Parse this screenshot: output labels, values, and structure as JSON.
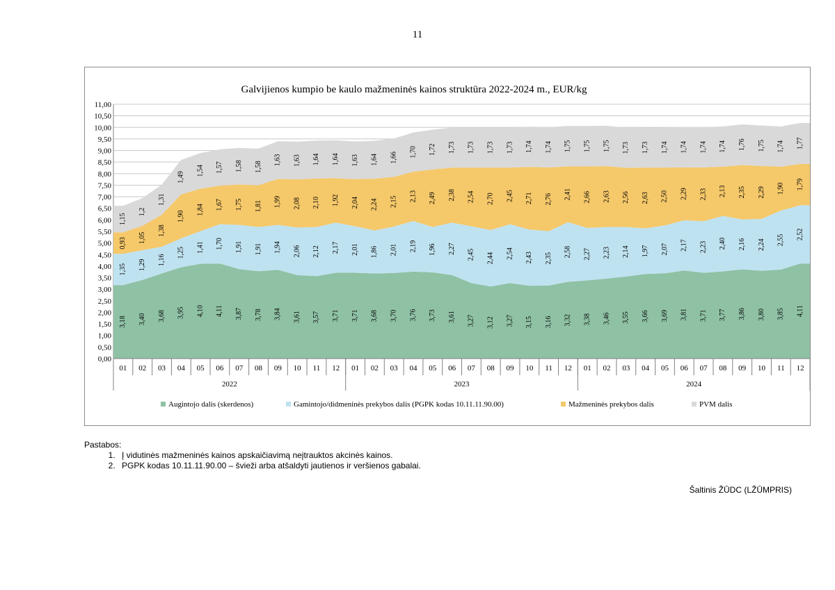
{
  "page_number": "11",
  "chart_data": {
    "type": "area",
    "stacked": true,
    "title": "Galvijienos kumpio be kaulo mažmeninės kainos struktūra 2022-2024 m., EUR/kg",
    "ylim": [
      0,
      11
    ],
    "yticks": [
      "0,00",
      "0,50",
      "1,00",
      "1,50",
      "2,00",
      "2,50",
      "3,00",
      "3,50",
      "4,00",
      "4,50",
      "5,00",
      "5,50",
      "6,00",
      "6,50",
      "7,00",
      "7,50",
      "8,00",
      "8,50",
      "9,00",
      "9,50",
      "10,00",
      "10,50",
      "11,00"
    ],
    "categories": [
      "01",
      "02",
      "03",
      "04",
      "05",
      "06",
      "07",
      "08",
      "09",
      "10",
      "11",
      "12",
      "01",
      "02",
      "03",
      "04",
      "05",
      "06",
      "07",
      "08",
      "09",
      "10",
      "11",
      "12",
      "01",
      "02",
      "03",
      "04",
      "05",
      "06",
      "07",
      "08",
      "09",
      "10",
      "11",
      "12"
    ],
    "years": [
      "2022",
      "2023",
      "2024"
    ],
    "grid": true,
    "legend_position": "bottom",
    "series": [
      {
        "name": "Augintojo dalis (skerdenos)",
        "color": "#8fc1a5",
        "values": [
          3.18,
          3.4,
          3.68,
          3.95,
          4.1,
          4.11,
          3.87,
          3.78,
          3.84,
          3.61,
          3.57,
          3.71,
          3.71,
          3.68,
          3.7,
          3.76,
          3.73,
          3.61,
          3.27,
          3.12,
          3.27,
          3.15,
          3.16,
          3.32,
          3.38,
          3.46,
          3.55,
          3.66,
          3.69,
          3.81,
          3.71,
          3.77,
          3.86,
          3.8,
          3.85,
          4.11
        ],
        "labels": [
          "3,18",
          "3,40",
          "3,68",
          "3,95",
          "4,10",
          "4,11",
          "3,87",
          "3,78",
          "3,84",
          "3,61",
          "3,57",
          "3,71",
          "3,71",
          "3,68",
          "3,70",
          "3,76",
          "3,73",
          "3,61",
          "3,27",
          "3,12",
          "3,27",
          "3,15",
          "3,16",
          "3,32",
          "3,38",
          "3,46",
          "3,55",
          "3,66",
          "3,69",
          "3,81",
          "3,71",
          "3,77",
          "3,86",
          "3,80",
          "3,85",
          "4,11"
        ]
      },
      {
        "name": "Gamintojo/didmeninės prekybos dalis (PGPK kodas 10.11.11.90.00)",
        "color": "#bfe2f0",
        "values": [
          1.35,
          1.29,
          1.16,
          1.25,
          1.41,
          1.7,
          1.91,
          1.91,
          1.94,
          2.06,
          2.12,
          2.17,
          2.01,
          1.86,
          2.01,
          2.19,
          1.96,
          2.27,
          2.45,
          2.44,
          2.54,
          2.43,
          2.35,
          2.58,
          2.27,
          2.23,
          2.14,
          1.97,
          2.07,
          2.17,
          2.23,
          2.4,
          2.16,
          2.24,
          2.55,
          2.52
        ],
        "labels": [
          "1,35",
          "1,29",
          "1,16",
          "1,25",
          "1,41",
          "1,70",
          "1,91",
          "1,91",
          "1,94",
          "2,06",
          "2,12",
          "2,17",
          "2,01",
          "1,86",
          "2,01",
          "2,19",
          "1,96",
          "2,27",
          "2,45",
          "2,44",
          "2,54",
          "2,43",
          "2,35",
          "2,58",
          "2,27",
          "2,23",
          "2,14",
          "1,97",
          "2,07",
          "2,17",
          "2,23",
          "2,40",
          "2,16",
          "2,24",
          "2,55",
          "2,52"
        ]
      },
      {
        "name": "Mažmeninės prekybos dalis",
        "color": "#f5c86a",
        "values": [
          0.93,
          1.05,
          1.38,
          1.9,
          1.84,
          1.67,
          1.75,
          1.81,
          1.99,
          2.08,
          2.1,
          1.92,
          2.04,
          2.24,
          2.15,
          2.13,
          2.49,
          2.38,
          2.54,
          2.7,
          2.45,
          2.71,
          2.76,
          2.41,
          2.66,
          2.63,
          2.56,
          2.63,
          2.5,
          2.29,
          2.33,
          2.13,
          2.35,
          2.29,
          1.9,
          1.79
        ],
        "labels": [
          "0,93",
          "1,05",
          "1,38",
          "1,90",
          "1,84",
          "1,67",
          "1,75",
          "1,81",
          "1,99",
          "2,08",
          "2,10",
          "1,92",
          "2,04",
          "2,24",
          "2,15",
          "2,13",
          "2,49",
          "2,38",
          "2,54",
          "2,70",
          "2,45",
          "2,71",
          "2,76",
          "2,41",
          "2,66",
          "2,63",
          "2,56",
          "2,63",
          "2,50",
          "2,29",
          "2,33",
          "2,13",
          "2,35",
          "2,29",
          "1,90",
          "1,79"
        ]
      },
      {
        "name": "PVM dalis",
        "color": "#d9d9d9",
        "values": [
          1.15,
          1.2,
          1.31,
          1.49,
          1.54,
          1.57,
          1.58,
          1.58,
          1.63,
          1.63,
          1.64,
          1.64,
          1.63,
          1.64,
          1.66,
          1.7,
          1.72,
          1.73,
          1.73,
          1.73,
          1.73,
          1.74,
          1.74,
          1.75,
          1.75,
          1.75,
          1.73,
          1.73,
          1.74,
          1.74,
          1.74,
          1.74,
          1.76,
          1.75,
          1.74,
          1.77
        ],
        "labels": [
          "1,15",
          "1,2",
          "1,31",
          "1,49",
          "1,54",
          "1,57",
          "1,58",
          "1,58",
          "1,63",
          "1,63",
          "1,64",
          "1,64",
          "1,63",
          "1,64",
          "1,66",
          "1,70",
          "1,72",
          "1,73",
          "1,73",
          "1,73",
          "1,73",
          "1,74",
          "1,74",
          "1,75",
          "1,75",
          "1,75",
          "1,73",
          "1,73",
          "1,74",
          "1,74",
          "1,74",
          "1,74",
          "1,76",
          "1,75",
          "1,74",
          "1,77"
        ]
      }
    ]
  },
  "notes": {
    "heading": "Pastabos:",
    "items": [
      "Į vidutinės mažmeninės kainos apskaičiavimą neįtrauktos akcinės kainos.",
      "PGPK kodas 10.11.11.90.00 – švieži arba atšaldyti jautienos ir veršienos gabalai."
    ]
  },
  "source": "Šaltinis ŽŪDC (LŽŪMPRIS)"
}
